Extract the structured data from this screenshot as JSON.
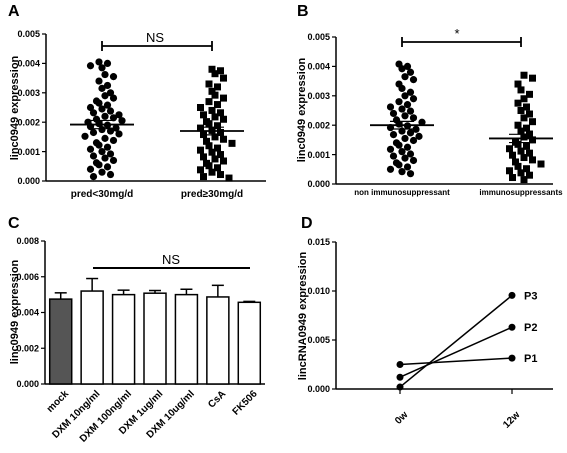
{
  "chart_data": [
    {
      "panel": "A",
      "type": "scatter",
      "ylabel": "linc0949  expression",
      "ylim": [
        0,
        0.005
      ],
      "yticks": [
        "0.000",
        "0.001",
        "0.002",
        "0.003",
        "0.004",
        "0.005"
      ],
      "categories": [
        "pred<30mg/d",
        "pred≥30mg/d"
      ],
      "markers": [
        "circle",
        "square"
      ],
      "significance": "NS",
      "groups": [
        {
          "mean": 0.00192,
          "sem": 0.00014,
          "values": [
            0.00405,
            0.004,
            0.00392,
            0.00385,
            0.00362,
            0.00355,
            0.0034,
            0.00325,
            0.00315,
            0.003,
            0.0029,
            0.00282,
            0.00272,
            0.00265,
            0.00258,
            0.0025,
            0.00245,
            0.00238,
            0.00232,
            0.00225,
            0.0022,
            0.00215,
            0.0021,
            0.00205,
            0.002,
            0.00195,
            0.0019,
            0.00185,
            0.0018,
            0.00175,
            0.0017,
            0.00165,
            0.0016,
            0.00152,
            0.00145,
            0.00138,
            0.0013,
            0.00122,
            0.00115,
            0.00108,
            0.001,
            0.00092,
            0.00085,
            0.00078,
            0.0007,
            0.00062,
            0.00055,
            0.00048,
            0.0004,
            0.0003,
            0.00022,
            0.00015
          ]
        },
        {
          "mean": 0.0017,
          "sem": 0.00013,
          "values": [
            0.0038,
            0.00375,
            0.00365,
            0.0035,
            0.0033,
            0.0032,
            0.00305,
            0.00292,
            0.00282,
            0.0027,
            0.0026,
            0.0025,
            0.0024,
            0.00232,
            0.00225,
            0.00218,
            0.0021,
            0.00202,
            0.00195,
            0.00188,
            0.0018,
            0.00172,
            0.00165,
            0.00158,
            0.0015,
            0.00142,
            0.00135,
            0.00128,
            0.0012,
            0.00112,
            0.00105,
            0.00098,
            0.0009,
            0.00082,
            0.00075,
            0.00068,
            0.0006,
            0.00052,
            0.00045,
            0.00038,
            0.0003,
            0.00022,
            0.00015,
            0.0001
          ]
        }
      ]
    },
    {
      "panel": "B",
      "type": "scatter",
      "ylabel": "linc0949  expression",
      "ylim": [
        0,
        0.005
      ],
      "yticks": [
        "0.000",
        "0.001",
        "0.002",
        "0.003",
        "0.004",
        "0.005"
      ],
      "categories": [
        "non immunosuppressant",
        "immunosuppressants"
      ],
      "markers": [
        "circle",
        "square"
      ],
      "significance": "*",
      "groups": [
        {
          "mean": 0.002,
          "sem": 0.00013,
          "values": [
            0.00408,
            0.004,
            0.00392,
            0.0038,
            0.00365,
            0.00355,
            0.0034,
            0.00325,
            0.00312,
            0.003,
            0.0029,
            0.0028,
            0.0027,
            0.00262,
            0.00255,
            0.00248,
            0.0024,
            0.00232,
            0.00225,
            0.00218,
            0.0021,
            0.00204,
            0.00198,
            0.00192,
            0.00186,
            0.0018,
            0.00174,
            0.00168,
            0.00162,
            0.00155,
            0.00148,
            0.0014,
            0.00132,
            0.00125,
            0.00118,
            0.0011,
            0.00102,
            0.00095,
            0.00088,
            0.0008,
            0.00072,
            0.00065,
            0.00058,
            0.0005,
            0.00042,
            0.00035
          ]
        },
        {
          "mean": 0.00155,
          "sem": 0.00014,
          "values": [
            0.0037,
            0.0036,
            0.0034,
            0.0032,
            0.00305,
            0.0029,
            0.00275,
            0.00262,
            0.0025,
            0.00238,
            0.00225,
            0.00212,
            0.002,
            0.0019,
            0.0018,
            0.0017,
            0.0016,
            0.0015,
            0.00142,
            0.00135,
            0.00128,
            0.0012,
            0.00112,
            0.00105,
            0.00098,
            0.0009,
            0.00082,
            0.00075,
            0.00068,
            0.0006,
            0.00052,
            0.00045,
            0.00038,
            0.0003,
            0.00022,
            0.00015
          ]
        }
      ]
    },
    {
      "panel": "C",
      "type": "bar",
      "ylabel": "linc0949  expression",
      "ylim": [
        0,
        0.008
      ],
      "yticks": [
        "0.000",
        "0.002",
        "0.004",
        "0.006",
        "0.008"
      ],
      "categories": [
        "mock",
        "DXM 10ng/ml",
        "DXM 100ng/ml",
        "DXM 1ug/ml",
        "DXM 10ug/ml",
        "CsA",
        "FK506"
      ],
      "values": [
        0.00475,
        0.0052,
        0.005,
        0.00508,
        0.005,
        0.00487,
        0.00457
      ],
      "errors": [
        0.00035,
        0.0007,
        0.00025,
        0.00015,
        0.0003,
        0.00065,
        5e-05
      ],
      "fills": [
        "#555555",
        "#ffffff",
        "#ffffff",
        "#ffffff",
        "#ffffff",
        "#ffffff",
        "#ffffff"
      ],
      "significance": "NS"
    },
    {
      "panel": "D",
      "type": "line",
      "ylabel": "lincRNA0949  expression",
      "ylim": [
        0,
        0.015
      ],
      "yticks": [
        "0.000",
        "0.005",
        "0.010",
        "0.015"
      ],
      "categories": [
        "0w",
        "12w"
      ],
      "series": [
        {
          "name": "P3",
          "values": [
            0.0002,
            0.00955
          ]
        },
        {
          "name": "P2",
          "values": [
            0.0012,
            0.0063
          ]
        },
        {
          "name": "P1",
          "values": [
            0.0025,
            0.00315
          ]
        }
      ]
    }
  ]
}
